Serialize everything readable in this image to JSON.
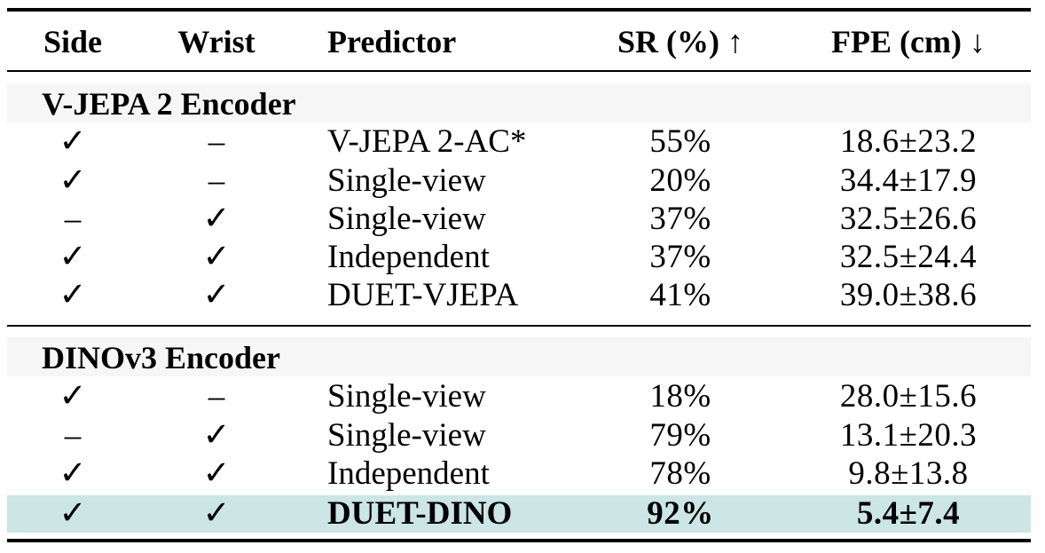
{
  "headers": {
    "side": "Side",
    "wrist": "Wrist",
    "predictor": "Predictor",
    "sr": "SR (%) ↑",
    "fpe": "FPE (cm) ↓"
  },
  "groups": [
    {
      "title": "V-JEPA 2 Encoder",
      "rows": [
        {
          "side": "✓",
          "wrist": "–",
          "predictor": "V-JEPA 2-AC*",
          "sr": "55%",
          "fpe": "18.6±23.2"
        },
        {
          "side": "✓",
          "wrist": "–",
          "predictor": "Single-view",
          "sr": "20%",
          "fpe": "34.4±17.9"
        },
        {
          "side": "–",
          "wrist": "✓",
          "predictor": "Single-view",
          "sr": "37%",
          "fpe": "32.5±26.6"
        },
        {
          "side": "✓",
          "wrist": "✓",
          "predictor": "Independent",
          "sr": "37%",
          "fpe": "32.5±24.4"
        },
        {
          "side": "✓",
          "wrist": "✓",
          "predictor": "DUET-VJEPA",
          "sr": "41%",
          "fpe": "39.0±38.6"
        }
      ]
    },
    {
      "title": "DINOv3 Encoder",
      "rows": [
        {
          "side": "✓",
          "wrist": "–",
          "predictor": "Single-view",
          "sr": "18%",
          "fpe": "28.0±15.6"
        },
        {
          "side": "–",
          "wrist": "✓",
          "predictor": "Single-view",
          "sr": "79%",
          "fpe": "13.1±20.3"
        },
        {
          "side": "✓",
          "wrist": "✓",
          "predictor": "Independent",
          "sr": "78%",
          "fpe": "9.8±13.8"
        },
        {
          "side": "✓",
          "wrist": "✓",
          "predictor": "DUET-DINO",
          "sr": "92%",
          "fpe": "5.4±7.4"
        }
      ]
    }
  ],
  "highlight_color": "#cce5e5"
}
